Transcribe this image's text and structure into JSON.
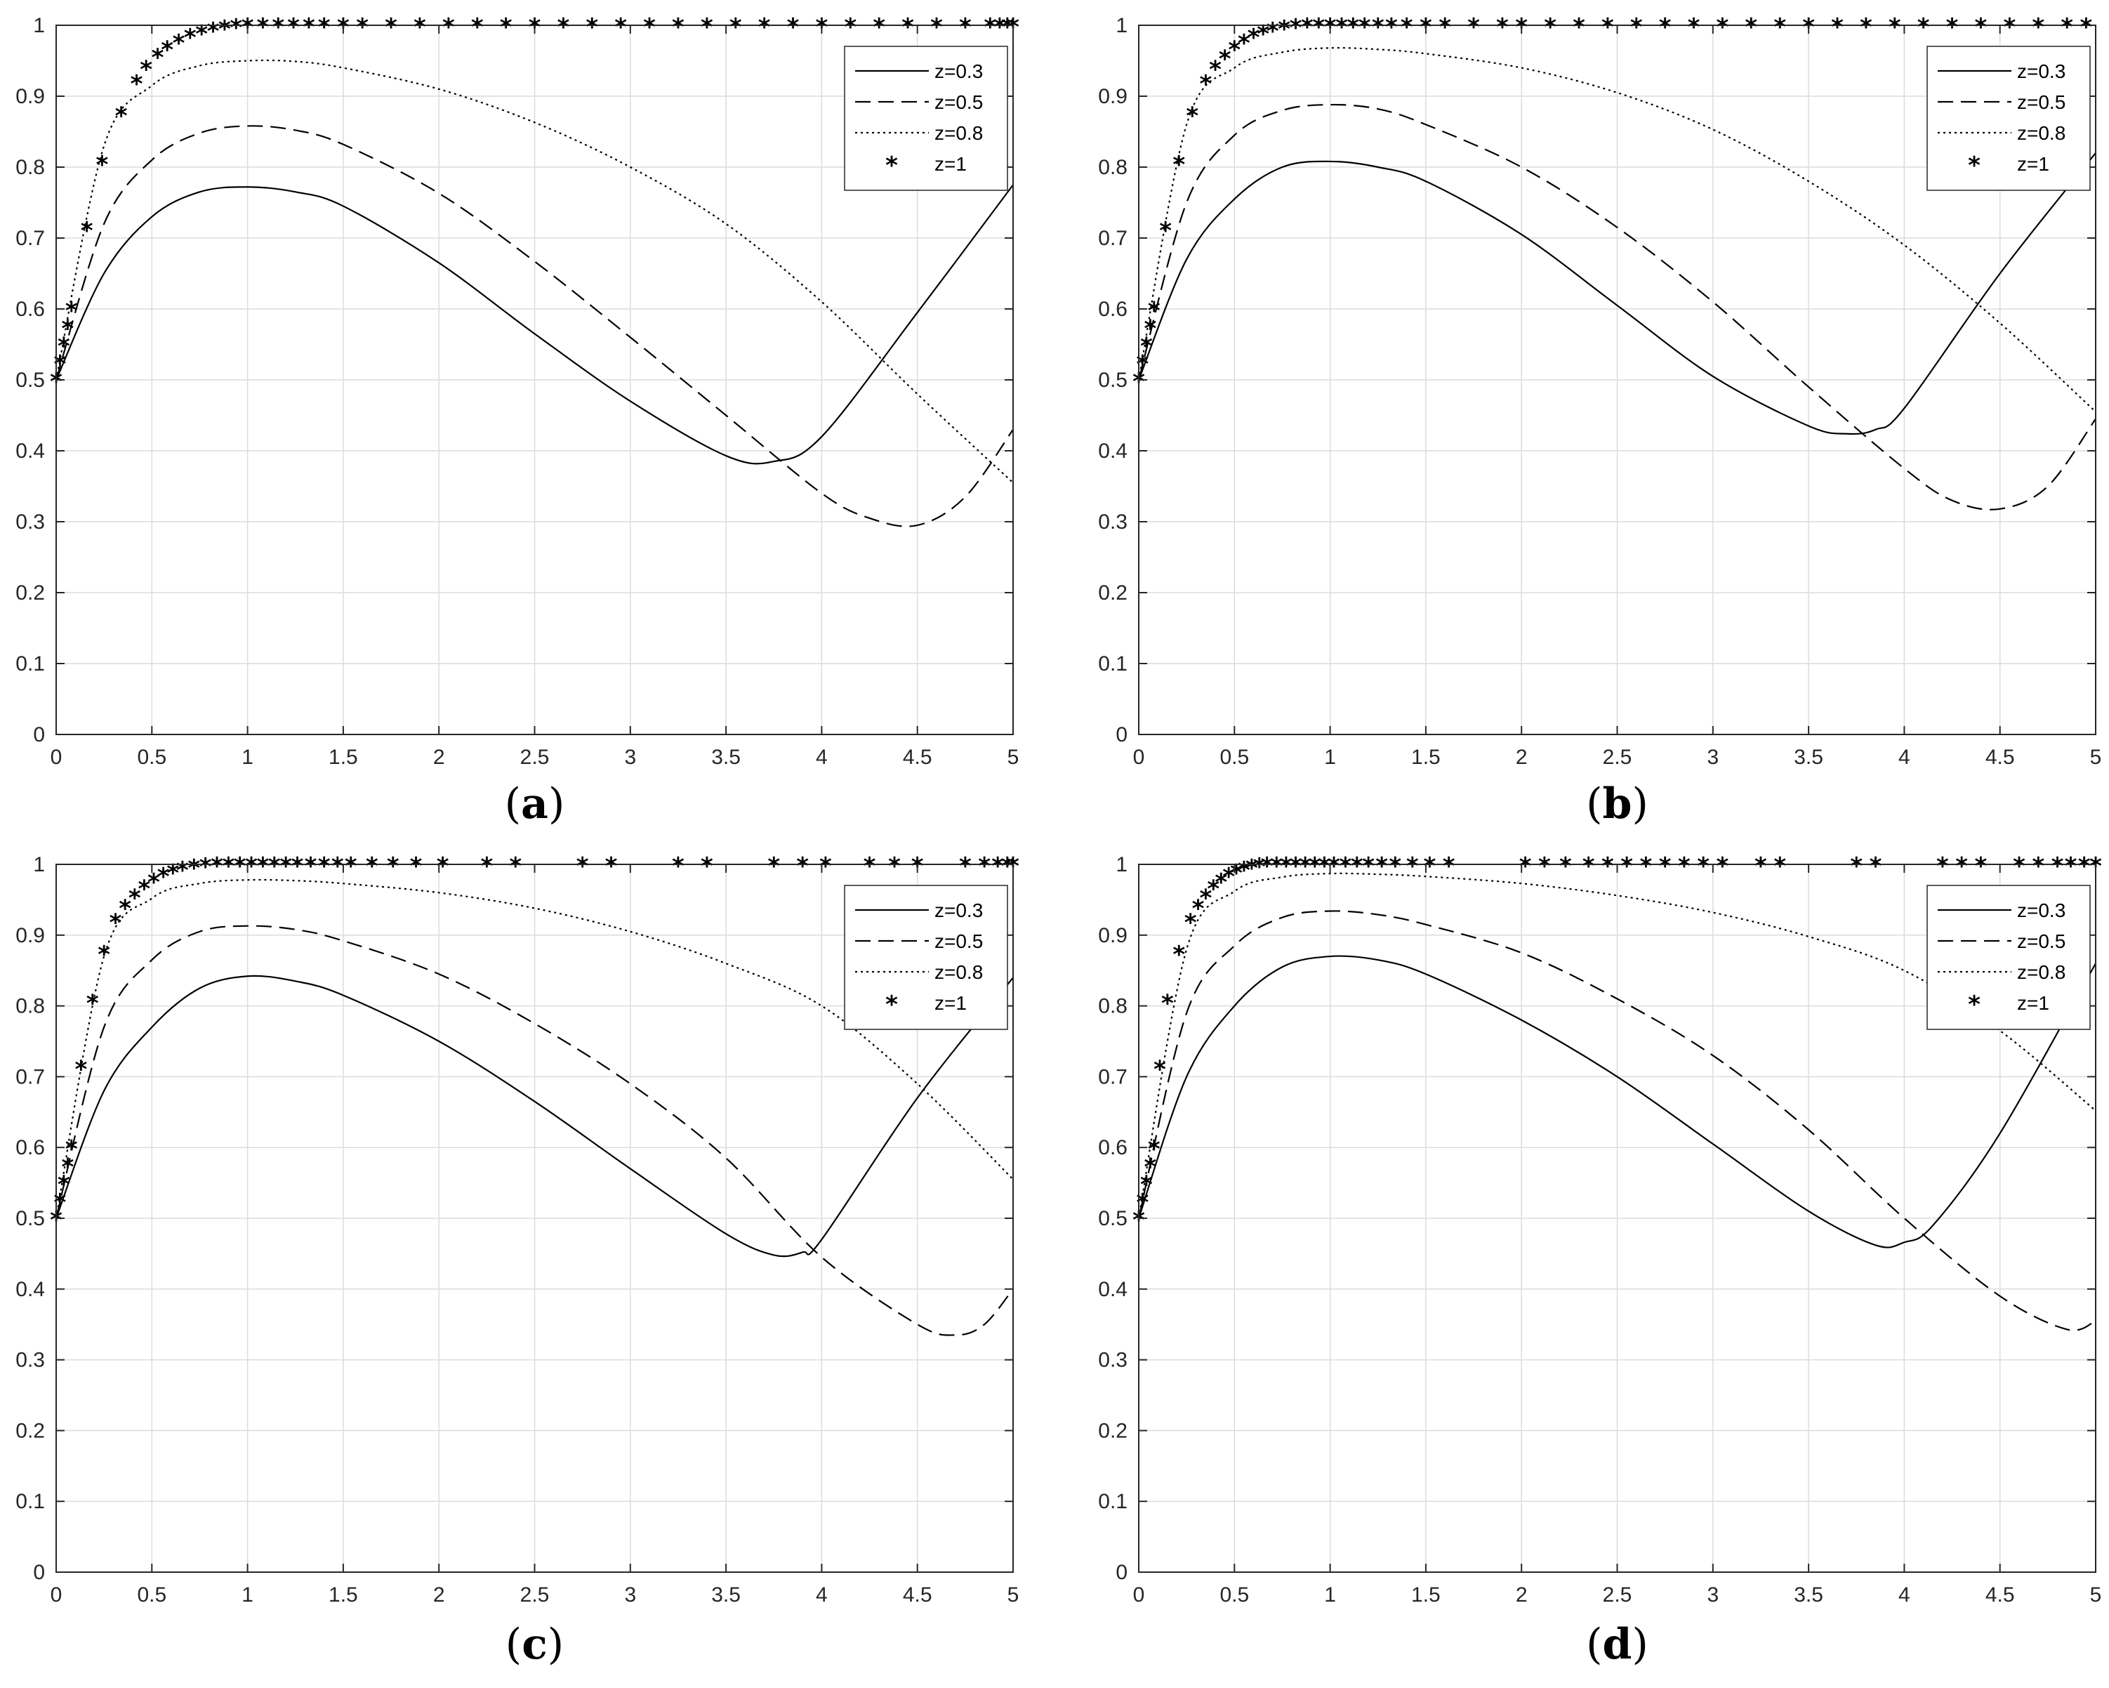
{
  "figure": {
    "style": {
      "line_color": "#000000",
      "grid_color": "#dcdcdc",
      "axis_color": "#262626",
      "background": "#ffffff"
    },
    "legend": [
      {
        "label": "z=0.3",
        "style": "solid"
      },
      {
        "label": "z=0.5",
        "style": "dashed"
      },
      {
        "label": "z=0.8",
        "style": "dotted"
      },
      {
        "label": "z=1",
        "style": "star"
      }
    ]
  },
  "chart_data": [
    {
      "type": "line",
      "panel": "a",
      "label_open": "(",
      "label_letter": "a",
      "label_close": ")",
      "xlim": [
        0,
        5
      ],
      "ylim": [
        0,
        1
      ],
      "xticks": [
        "0",
        "0.5",
        "1",
        "1.5",
        "2",
        "2.5",
        "3",
        "3.5",
        "4",
        "4.5",
        "5"
      ],
      "yticks": [
        "0",
        "0.1",
        "0.2",
        "0.3",
        "0.4",
        "0.5",
        "0.6",
        "0.7",
        "0.8",
        "0.9",
        "1"
      ],
      "grid": true,
      "legend_position": "top-right",
      "series": [
        {
          "name": "z=0.3",
          "style": "solid",
          "x": [
            0,
            0.25,
            0.5,
            0.75,
            1,
            1.25,
            1.5,
            2,
            2.5,
            3,
            3.5,
            3.75,
            4,
            4.5,
            5
          ],
          "y": [
            0.5,
            0.65,
            0.73,
            0.765,
            0.772,
            0.765,
            0.745,
            0.665,
            0.565,
            0.47,
            0.393,
            0.385,
            0.42,
            0.595,
            0.775
          ]
        },
        {
          "name": "z=0.5",
          "style": "dashed",
          "x": [
            0,
            0.25,
            0.5,
            0.75,
            1,
            1.25,
            1.5,
            2,
            2.5,
            3,
            3.5,
            4,
            4.25,
            4.5,
            4.75,
            5
          ],
          "y": [
            0.5,
            0.72,
            0.81,
            0.848,
            0.858,
            0.852,
            0.832,
            0.763,
            0.667,
            0.56,
            0.45,
            0.34,
            0.305,
            0.295,
            0.335,
            0.43
          ]
        },
        {
          "name": "z=0.8",
          "style": "dotted",
          "x": [
            0,
            0.25,
            0.5,
            0.75,
            1,
            1.25,
            1.5,
            2,
            2.5,
            3,
            3.5,
            4,
            4.5,
            5
          ],
          "y": [
            0.5,
            0.83,
            0.915,
            0.943,
            0.95,
            0.949,
            0.94,
            0.91,
            0.863,
            0.8,
            0.72,
            0.61,
            0.48,
            0.355
          ]
        },
        {
          "name": "z=1",
          "style": "star",
          "x": [
            0,
            0.02,
            0.04,
            0.06,
            0.08,
            0.16,
            0.24,
            0.34,
            0.42,
            0.47,
            0.53,
            0.58,
            0.64,
            0.7,
            0.76,
            0.82,
            0.88,
            0.94,
            1.0,
            1.08,
            1.16,
            1.24,
            1.32,
            1.4,
            1.5,
            1.6,
            1.75,
            1.9,
            2.05,
            2.2,
            2.35,
            2.5,
            2.65,
            2.8,
            2.95,
            3.1,
            3.25,
            3.4,
            3.55,
            3.7,
            3.85,
            4.0,
            4.15,
            4.3,
            4.45,
            4.6,
            4.75,
            4.88,
            4.93,
            4.97,
            5.0
          ],
          "y": [
            0.5,
            0.525,
            0.55,
            0.575,
            0.6,
            0.713,
            0.806,
            0.875,
            0.92,
            0.94,
            0.957,
            0.968,
            0.977,
            0.985,
            0.99,
            0.994,
            0.997,
            0.999,
            1,
            1,
            1,
            1,
            1,
            1,
            1,
            1,
            1,
            1,
            1,
            1,
            1,
            1,
            1,
            1,
            1,
            1,
            1,
            1,
            1,
            1,
            1,
            1,
            1,
            1,
            1,
            1,
            1,
            1,
            1,
            1,
            1
          ]
        }
      ]
    },
    {
      "type": "line",
      "panel": "b",
      "label_open": "(",
      "label_letter": "b",
      "label_close": ")",
      "xlim": [
        0,
        5
      ],
      "ylim": [
        0,
        1
      ],
      "xticks": [
        "0",
        "0.5",
        "1",
        "1.5",
        "2",
        "2.5",
        "3",
        "3.5",
        "4",
        "4.5",
        "5"
      ],
      "yticks": [
        "0",
        "0.1",
        "0.2",
        "0.3",
        "0.4",
        "0.5",
        "0.6",
        "0.7",
        "0.8",
        "0.9",
        "1"
      ],
      "grid": true,
      "legend_position": "top-right",
      "series": [
        {
          "name": "z=0.3",
          "style": "solid",
          "x": [
            0,
            0.25,
            0.5,
            0.75,
            1,
            1.25,
            1.5,
            2,
            2.5,
            3,
            3.5,
            3.7,
            3.85,
            4,
            4.5,
            5
          ],
          "y": [
            0.5,
            0.67,
            0.755,
            0.8,
            0.808,
            0.8,
            0.78,
            0.705,
            0.605,
            0.505,
            0.435,
            0.424,
            0.43,
            0.46,
            0.65,
            0.82
          ]
        },
        {
          "name": "z=0.5",
          "style": "dashed",
          "x": [
            0,
            0.25,
            0.5,
            0.75,
            1,
            1.25,
            1.5,
            2,
            2.5,
            3,
            3.5,
            4,
            4.25,
            4.5,
            4.75,
            5
          ],
          "y": [
            0.5,
            0.75,
            0.845,
            0.88,
            0.888,
            0.882,
            0.86,
            0.8,
            0.715,
            0.61,
            0.49,
            0.375,
            0.33,
            0.318,
            0.35,
            0.445
          ]
        },
        {
          "name": "z=0.8",
          "style": "dotted",
          "x": [
            0,
            0.25,
            0.5,
            0.75,
            1,
            1.25,
            1.5,
            2,
            2.5,
            3,
            3.5,
            4,
            4.5,
            5
          ],
          "y": [
            0.5,
            0.86,
            0.94,
            0.962,
            0.968,
            0.966,
            0.96,
            0.94,
            0.905,
            0.853,
            0.78,
            0.69,
            0.58,
            0.455
          ]
        },
        {
          "name": "z=1",
          "style": "star",
          "x": [
            0,
            0.02,
            0.04,
            0.06,
            0.08,
            0.14,
            0.21,
            0.28,
            0.35,
            0.4,
            0.45,
            0.5,
            0.55,
            0.6,
            0.65,
            0.7,
            0.76,
            0.82,
            0.88,
            0.94,
            1.0,
            1.06,
            1.12,
            1.18,
            1.25,
            1.32,
            1.4,
            1.5,
            1.6,
            1.75,
            1.9,
            2.0,
            2.15,
            2.3,
            2.45,
            2.6,
            2.75,
            2.9,
            3.05,
            3.2,
            3.35,
            3.5,
            3.65,
            3.8,
            3.95,
            4.1,
            4.25,
            4.4,
            4.55,
            4.7,
            4.85,
            4.95
          ],
          "y": [
            0.5,
            0.525,
            0.55,
            0.575,
            0.6,
            0.713,
            0.806,
            0.875,
            0.92,
            0.94,
            0.955,
            0.968,
            0.977,
            0.985,
            0.99,
            0.994,
            0.997,
            0.999,
            1,
            1,
            1,
            1,
            1,
            1,
            1,
            1,
            1,
            1,
            1,
            1,
            1,
            1,
            1,
            1,
            1,
            1,
            1,
            1,
            1,
            1,
            1,
            1,
            1,
            1,
            1,
            1,
            1,
            1,
            1,
            1,
            1,
            1
          ]
        }
      ]
    },
    {
      "type": "line",
      "panel": "c",
      "label_open": "(",
      "label_letter": "c",
      "label_close": ")",
      "xlim": [
        0,
        5
      ],
      "ylim": [
        0,
        1
      ],
      "xticks": [
        "0",
        "0.5",
        "1",
        "1.5",
        "2",
        "2.5",
        "3",
        "3.5",
        "4",
        "4.5",
        "5"
      ],
      "yticks": [
        "0",
        "0.1",
        "0.2",
        "0.3",
        "0.4",
        "0.5",
        "0.6",
        "0.7",
        "0.8",
        "0.9",
        "1"
      ],
      "grid": true,
      "legend_position": "top-right",
      "series": [
        {
          "name": "z=0.3",
          "style": "solid",
          "x": [
            0,
            0.25,
            0.5,
            0.75,
            1,
            1.25,
            1.5,
            2,
            2.5,
            3,
            3.5,
            3.75,
            3.9,
            4,
            4.5,
            5
          ],
          "y": [
            0.5,
            0.68,
            0.77,
            0.825,
            0.842,
            0.835,
            0.815,
            0.75,
            0.665,
            0.57,
            0.478,
            0.448,
            0.452,
            0.47,
            0.67,
            0.84
          ]
        },
        {
          "name": "z=0.5",
          "style": "dashed",
          "x": [
            0,
            0.25,
            0.5,
            0.75,
            1,
            1.25,
            1.5,
            2,
            2.5,
            3,
            3.5,
            4,
            4.5,
            4.7,
            4.85,
            5
          ],
          "y": [
            0.5,
            0.77,
            0.865,
            0.905,
            0.913,
            0.908,
            0.892,
            0.845,
            0.775,
            0.69,
            0.585,
            0.445,
            0.35,
            0.335,
            0.35,
            0.4
          ]
        },
        {
          "name": "z=0.8",
          "style": "dotted",
          "x": [
            0,
            0.25,
            0.5,
            0.75,
            1,
            1.25,
            1.5,
            2,
            2.5,
            3,
            3.5,
            4,
            4.5,
            5
          ],
          "y": [
            0.5,
            0.87,
            0.952,
            0.973,
            0.978,
            0.977,
            0.973,
            0.96,
            0.938,
            0.905,
            0.86,
            0.8,
            0.69,
            0.555
          ]
        },
        {
          "name": "z=1",
          "style": "star",
          "x": [
            0,
            0.02,
            0.04,
            0.06,
            0.08,
            0.13,
            0.19,
            0.25,
            0.31,
            0.36,
            0.41,
            0.46,
            0.51,
            0.56,
            0.61,
            0.66,
            0.72,
            0.78,
            0.84,
            0.9,
            0.96,
            1.02,
            1.08,
            1.14,
            1.2,
            1.26,
            1.33,
            1.4,
            1.47,
            1.54,
            1.65,
            1.76,
            1.88,
            2.02,
            2.25,
            2.4,
            2.75,
            2.9,
            3.25,
            3.4,
            3.75,
            3.9,
            4.02,
            4.25,
            4.38,
            4.5,
            4.75,
            4.85,
            4.92,
            4.97,
            5.0
          ],
          "y": [
            0.5,
            0.525,
            0.55,
            0.575,
            0.6,
            0.713,
            0.806,
            0.875,
            0.92,
            0.94,
            0.955,
            0.968,
            0.977,
            0.985,
            0.99,
            0.994,
            0.997,
            0.999,
            1,
            1,
            1,
            1,
            1,
            1,
            1,
            1,
            1,
            1,
            1,
            1,
            1,
            1,
            1,
            1,
            1,
            1,
            1,
            1,
            1,
            1,
            1,
            1,
            1,
            1,
            1,
            1,
            1,
            1,
            1,
            1,
            1
          ]
        }
      ]
    },
    {
      "type": "line",
      "panel": "d",
      "label_open": "(",
      "label_letter": "d",
      "label_close": ")",
      "xlim": [
        0,
        5
      ],
      "ylim": [
        0,
        1
      ],
      "xticks": [
        "0",
        "0.5",
        "1",
        "1.5",
        "2",
        "2.5",
        "3",
        "3.5",
        "4",
        "4.5",
        "5"
      ],
      "yticks": [
        "0",
        "0.1",
        "0.2",
        "0.3",
        "0.4",
        "0.5",
        "0.6",
        "0.7",
        "0.8",
        "0.9",
        "1"
      ],
      "grid": true,
      "legend_position": "top-right",
      "series": [
        {
          "name": "z=0.3",
          "style": "solid",
          "x": [
            0,
            0.25,
            0.5,
            0.75,
            1,
            1.25,
            1.5,
            2,
            2.5,
            3,
            3.5,
            3.85,
            4,
            4.15,
            4.5,
            5
          ],
          "y": [
            0.5,
            0.7,
            0.8,
            0.855,
            0.87,
            0.865,
            0.845,
            0.78,
            0.7,
            0.605,
            0.51,
            0.462,
            0.466,
            0.49,
            0.62,
            0.86
          ]
        },
        {
          "name": "z=0.5",
          "style": "dashed",
          "x": [
            0,
            0.25,
            0.5,
            0.75,
            1,
            1.25,
            1.5,
            2,
            2.5,
            3,
            3.5,
            4,
            4.5,
            4.85,
            5
          ],
          "y": [
            0.5,
            0.79,
            0.885,
            0.925,
            0.934,
            0.929,
            0.915,
            0.875,
            0.81,
            0.73,
            0.625,
            0.5,
            0.39,
            0.343,
            0.355
          ]
        },
        {
          "name": "z=0.8",
          "style": "dotted",
          "x": [
            0,
            0.25,
            0.5,
            0.75,
            1,
            1.25,
            1.5,
            2,
            2.5,
            3,
            3.5,
            4,
            4.5,
            5
          ],
          "y": [
            0.5,
            0.88,
            0.962,
            0.982,
            0.987,
            0.986,
            0.983,
            0.973,
            0.956,
            0.932,
            0.898,
            0.85,
            0.765,
            0.652
          ]
        },
        {
          "name": "z=1",
          "style": "star",
          "x": [
            0,
            0.02,
            0.04,
            0.06,
            0.08,
            0.11,
            0.15,
            0.21,
            0.27,
            0.31,
            0.35,
            0.39,
            0.43,
            0.47,
            0.51,
            0.55,
            0.59,
            0.63,
            0.67,
            0.72,
            0.77,
            0.82,
            0.87,
            0.92,
            0.97,
            1.02,
            1.08,
            1.14,
            1.2,
            1.27,
            1.34,
            1.43,
            1.52,
            1.62,
            2.02,
            2.12,
            2.23,
            2.35,
            2.45,
            2.55,
            2.65,
            2.75,
            2.85,
            2.95,
            3.05,
            3.25,
            3.35,
            3.75,
            3.85,
            4.2,
            4.3,
            4.4,
            4.6,
            4.7,
            4.8,
            4.87,
            4.94,
            5.0
          ],
          "y": [
            0.5,
            0.525,
            0.55,
            0.575,
            0.6,
            0.713,
            0.806,
            0.875,
            0.92,
            0.94,
            0.955,
            0.968,
            0.977,
            0.985,
            0.99,
            0.994,
            0.997,
            0.999,
            1,
            1,
            1,
            1,
            1,
            1,
            1,
            1,
            1,
            1,
            1,
            1,
            1,
            1,
            1,
            1,
            1,
            1,
            1,
            1,
            1,
            1,
            1,
            1,
            1,
            1,
            1,
            1,
            1,
            1,
            1,
            1,
            1,
            1,
            1,
            1,
            1,
            1,
            1,
            1
          ]
        }
      ]
    }
  ]
}
